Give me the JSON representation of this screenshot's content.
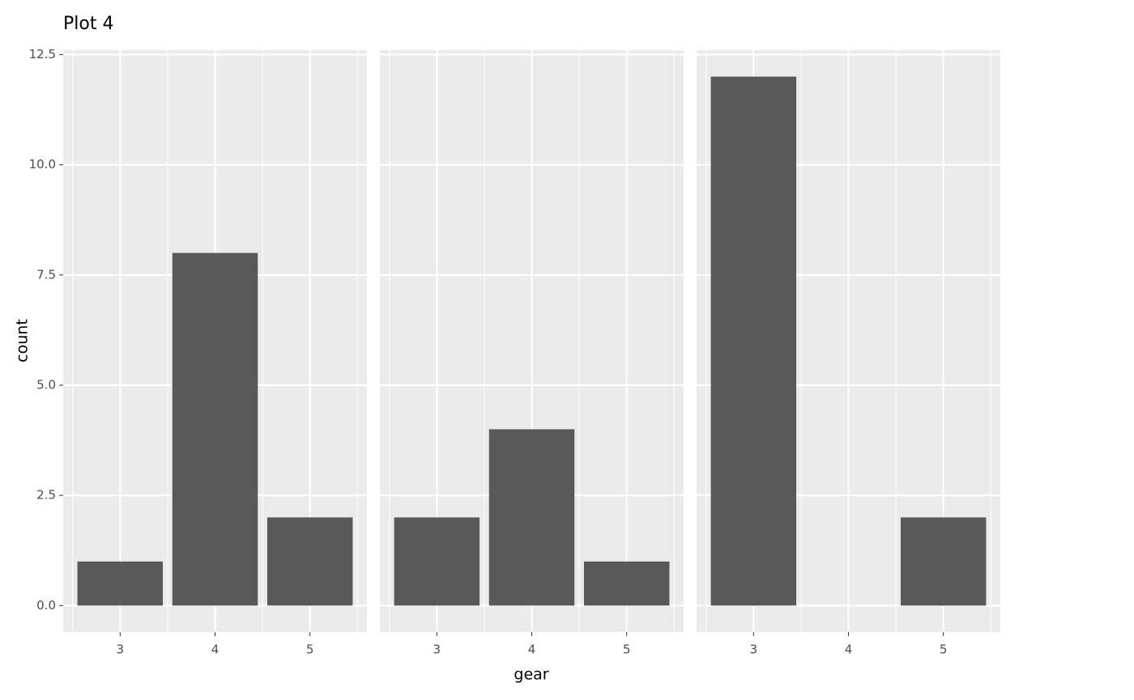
{
  "chart_data": {
    "type": "bar",
    "title": "Plot 4",
    "x_label": "gear",
    "y_label": "count",
    "categories": [
      "3",
      "4",
      "5"
    ],
    "panels": [
      {
        "values": [
          1,
          8,
          2
        ]
      },
      {
        "values": [
          2,
          4,
          1
        ]
      },
      {
        "values": [
          12,
          null,
          2
        ]
      }
    ],
    "color": "#595959",
    "ylim": [
      -0.6,
      12.6
    ],
    "yticks": [
      {
        "value": 0,
        "label": "0.0"
      },
      2.5,
      {
        "value": 5,
        "label": "5.0"
      },
      7.5,
      {
        "value": 10,
        "label": "10.0"
      },
      12.5
    ],
    "grid": true
  }
}
